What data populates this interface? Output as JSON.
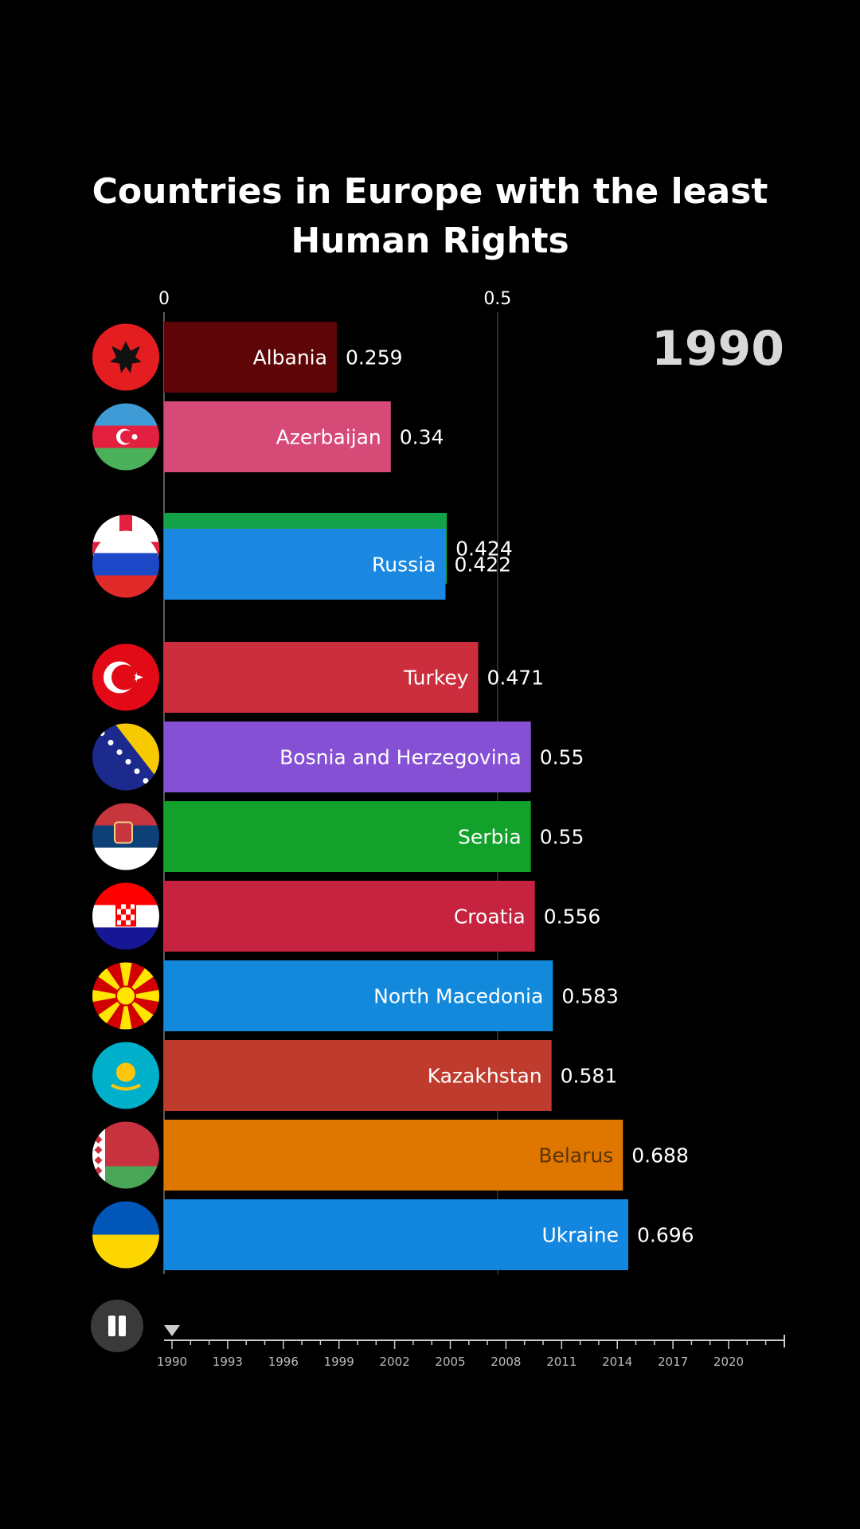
{
  "title_lines": [
    "Countries in Europe with the least",
    "Human Rights"
  ],
  "current_year": "1990",
  "player": {
    "state": "playing",
    "icon": "pause-icon"
  },
  "timeline": {
    "ticks": [
      "1990",
      "1993",
      "1996",
      "1999",
      "2002",
      "2005",
      "2008",
      "2011",
      "2014",
      "2017",
      "2020"
    ],
    "start": 1990,
    "end": 2023,
    "current": 1990
  },
  "chart_data": {
    "type": "bar",
    "orientation": "horizontal",
    "title": "Countries in Europe with the least Human Rights",
    "xlim": [
      0,
      0.93
    ],
    "x_ticks": [
      {
        "value": 0,
        "label": "0"
      },
      {
        "value": 0.5,
        "label": "0.5"
      }
    ],
    "grid": true,
    "categories": [
      "Albania",
      "Azerbaijan",
      "Georgia",
      "Russia",
      "Turkey",
      "Bosnia and Herzegovina",
      "Serbia",
      "Croatia",
      "North Macedonia",
      "Kazakhstan",
      "Belarus",
      "Ukraine"
    ],
    "values": [
      0.259,
      0.34,
      0.424,
      0.422,
      0.471,
      0.55,
      0.55,
      0.556,
      0.583,
      0.581,
      0.688,
      0.696
    ],
    "value_labels": [
      "0.259",
      "0.34",
      "0.424",
      "0.422",
      "0.471",
      "0.55",
      "0.55",
      "0.556",
      "0.583",
      "0.581",
      "0.688",
      "0.696"
    ],
    "colors": [
      "#5e0508",
      "#d64a78",
      "#14a34a",
      "#1a88e0",
      "#cc2e3d",
      "#8650d4",
      "#12a12a",
      "#c5233f",
      "#1289db",
      "#bf3b2d",
      "#de7600",
      "#1387df"
    ],
    "label_colors": [
      "#ffffff",
      "#ffffff",
      "#1a88e0",
      "#ffffff",
      "#ffffff",
      "#ffffff",
      "#ffffff",
      "#ffffff",
      "#ffffff",
      "#ffffff",
      "#5a3408",
      "#ffffff"
    ],
    "flags": [
      "albania-flag-icon",
      "azerbaijan-flag-icon",
      "georgia-flag-icon",
      "russia-flag-icon",
      "turkey-flag-icon",
      "bosnia-flag-icon",
      "serbia-flag-icon",
      "croatia-flag-icon",
      "north-macedonia-flag-icon",
      "kazakhstan-flag-icon",
      "belarus-flag-icon",
      "ukraine-flag-icon"
    ]
  }
}
